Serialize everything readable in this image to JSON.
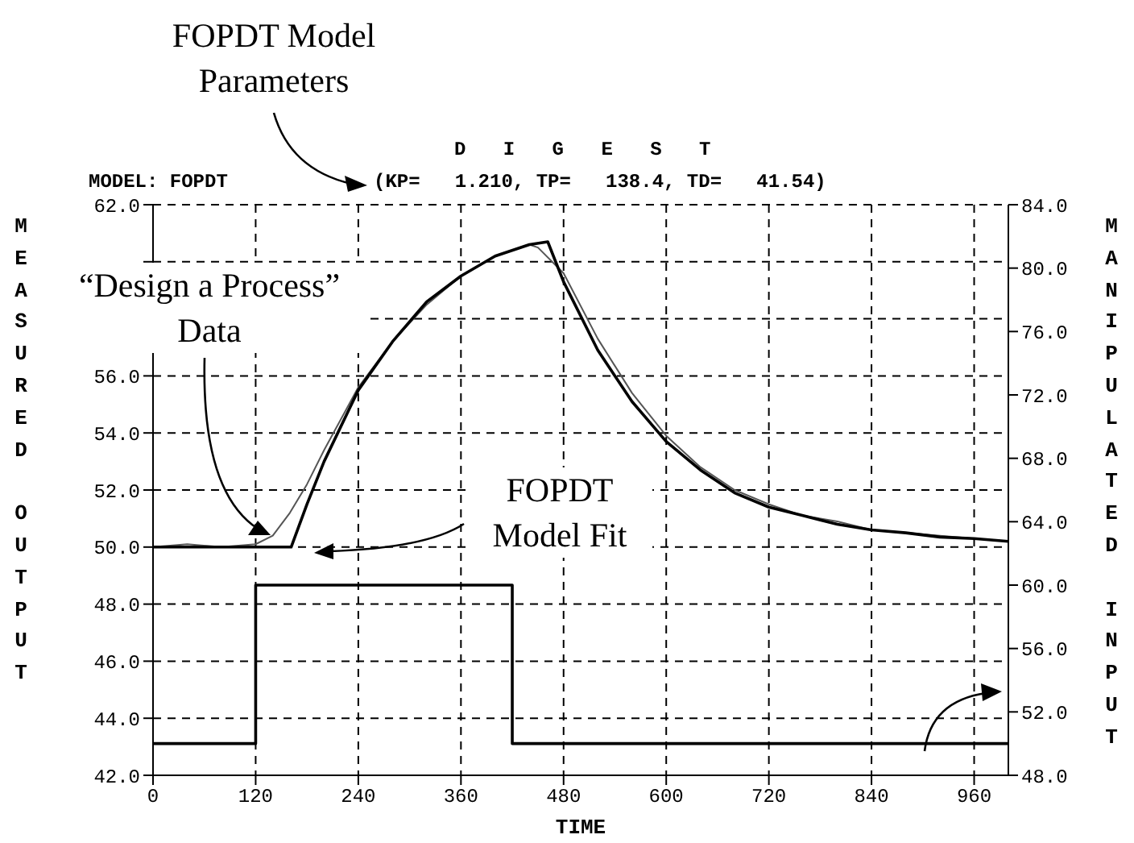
{
  "chart_data": {
    "type": "line",
    "title": "D I G E S T",
    "xlabel": "TIME",
    "ylabel": "MEASURED OUTPUT",
    "y2label": "MANIPULATED INPUT",
    "annotations": [
      "FOPDT Model Parameters",
      "MODEL: FOPDT",
      "(KP=   1.210, TP=   138.4, TD=   41.54)",
      "“Design a Process” Data",
      "FOPDT Model Fit"
    ],
    "xlim": [
      0,
      1000
    ],
    "xticks": [
      0,
      120,
      240,
      360,
      480,
      600,
      720,
      840,
      960
    ],
    "ylim": [
      42,
      62
    ],
    "yticks": [
      {
        "value": 42,
        "label": "42.0"
      },
      {
        "value": 44,
        "label": "44.0"
      },
      {
        "value": 46,
        "label": "46.0"
      },
      {
        "value": 48,
        "label": "48.0"
      },
      {
        "value": 50,
        "label": "50.0"
      },
      {
        "value": 52,
        "label": "52.0"
      },
      {
        "value": 54,
        "label": "54.0"
      },
      {
        "value": 56,
        "label": "56.0"
      },
      {
        "value": 58,
        "label": null
      },
      {
        "value": 60,
        "label": null
      },
      {
        "value": 62,
        "label": "62.0"
      }
    ],
    "y2lim": [
      48,
      84
    ],
    "y2ticks": [
      {
        "value": 48,
        "label": "48.0"
      },
      {
        "value": 52,
        "label": "52.0"
      },
      {
        "value": 56,
        "label": "56.0"
      },
      {
        "value": 60,
        "label": "60.0"
      },
      {
        "value": 64,
        "label": "64.0"
      },
      {
        "value": 68,
        "label": "68.0"
      },
      {
        "value": 72,
        "label": "72.0"
      },
      {
        "value": 76,
        "label": "76.0"
      },
      {
        "value": 80,
        "label": "80.0"
      },
      {
        "value": 84,
        "label": "84.0"
      }
    ],
    "grid": true,
    "legend": false,
    "marker": "none",
    "line_style": "solid",
    "series": [
      {
        "color": "#555555",
        "x": [
          0,
          40,
          80,
          120,
          140,
          160,
          180,
          200,
          240,
          280,
          320,
          360,
          400,
          440,
          450,
          480,
          520,
          560,
          600,
          640,
          680,
          720,
          760,
          800,
          840,
          880,
          920,
          960,
          1000
        ],
        "values": [
          50.0,
          50.1,
          50.0,
          50.1,
          50.4,
          51.2,
          52.2,
          53.4,
          55.6,
          57.2,
          58.5,
          59.5,
          60.2,
          60.6,
          60.5,
          59.6,
          57.3,
          55.4,
          53.9,
          52.8,
          52.0,
          51.5,
          51.1,
          50.9,
          50.6,
          50.5,
          50.4,
          50.3,
          50.2
        ]
      },
      {
        "color": "#000000",
        "x": [
          0,
          161.5,
          180,
          200,
          240,
          280,
          320,
          360,
          400,
          440,
          461.5,
          480,
          520,
          560,
          600,
          640,
          680,
          720,
          760,
          800,
          840,
          880,
          920,
          960,
          1000
        ],
        "values": [
          50,
          50,
          51.5,
          53.0,
          55.5,
          57.2,
          58.6,
          59.5,
          60.2,
          60.6,
          60.7,
          59.3,
          56.9,
          55.1,
          53.7,
          52.7,
          51.9,
          51.4,
          51.1,
          50.8,
          50.6,
          50.5,
          50.35,
          50.3,
          50.2
        ]
      },
      {
        "type": "step",
        "axis": "y2",
        "color": "#000000",
        "x": [
          0,
          120,
          420,
          1000
        ],
        "values": [
          50,
          60,
          50,
          50
        ]
      }
    ]
  }
}
